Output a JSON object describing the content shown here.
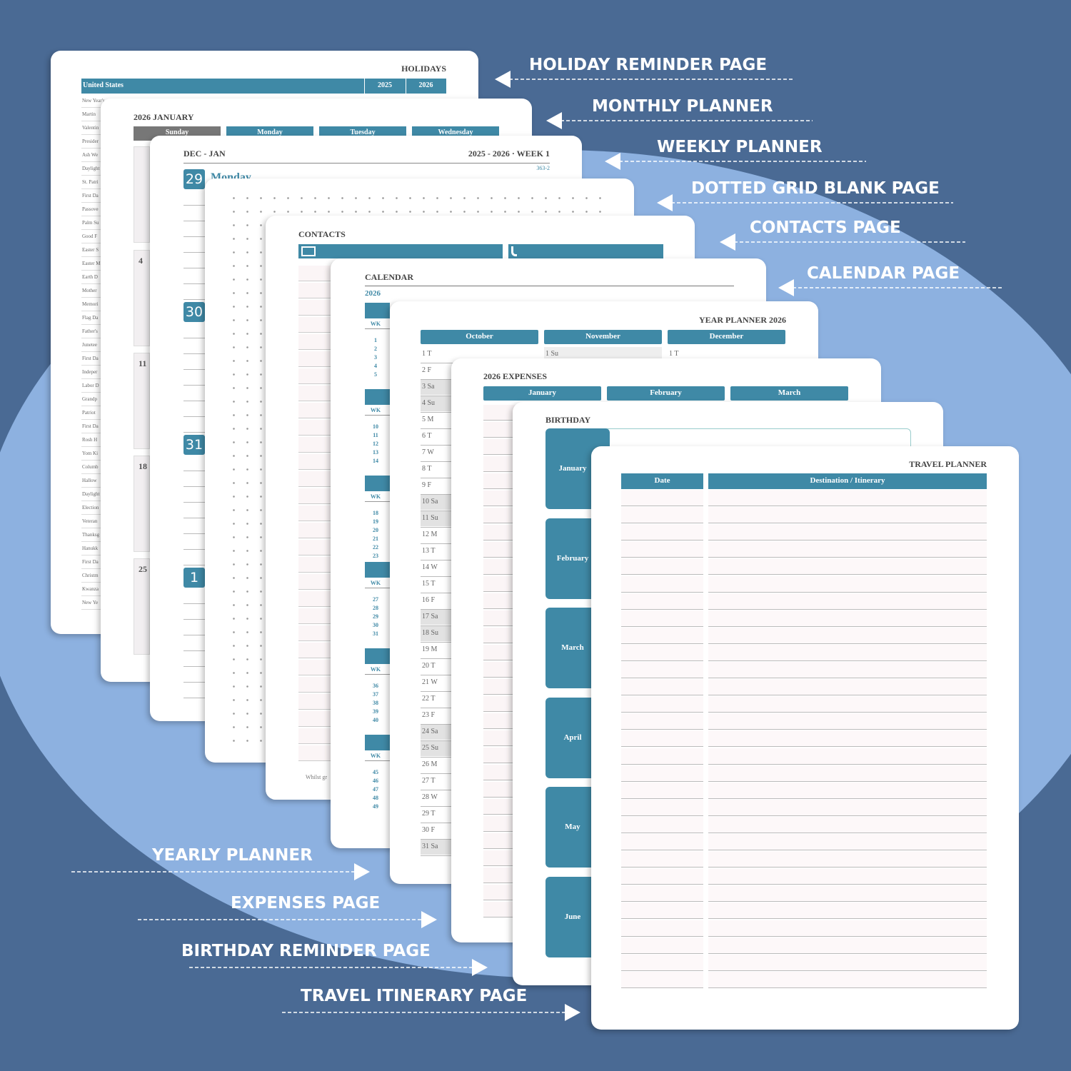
{
  "callouts": {
    "top": [
      "HOLIDAY REMINDER PAGE",
      "MONTHLY PLANNER",
      "WEEKLY PLANNER",
      "DOTTED GRID BLANK PAGE",
      "CONTACTS PAGE",
      "CALENDAR PAGE"
    ],
    "bottom": [
      "YEARLY PLANNER",
      "EXPENSES PAGE",
      "BIRTHDAY REMINDER PAGE",
      "TRAVEL ITINERARY PAGE"
    ]
  },
  "holidays": {
    "title": "HOLIDAYS",
    "country": "United States",
    "years": [
      "2025",
      "2026"
    ],
    "items": [
      "New Year's",
      "Martin",
      "Valentin",
      "Presider",
      "Ash We",
      "Daylight",
      "St. Patri",
      "First Da",
      "Passove",
      "Palm Su",
      "Good F",
      "Easter S",
      "Easter M",
      "Earth D",
      "Mother",
      "Memori",
      "Flag Da",
      "Father's",
      "Junetee",
      "First Da",
      "Indeper",
      "Labor D",
      "Grandp",
      "Patriot",
      "First Da",
      "Rosh H",
      "Yom Ki",
      "Columb",
      "Hallow",
      "Daylight",
      "Election",
      "Veteran",
      "Thanksg",
      "Hanukk",
      "First Da",
      "Christm",
      "Kwanza",
      "New Ye"
    ]
  },
  "monthly": {
    "title": "2026 JANUARY",
    "days": [
      "Sunday",
      "Monday",
      "Tuesday",
      "Wednesday"
    ],
    "dates": [
      "4",
      "11",
      "18",
      "25"
    ]
  },
  "weekly": {
    "range": "DEC - JAN",
    "week": "2025 - 2026 · WEEK 1",
    "day_of_year": "363-2",
    "day_name": "Monday",
    "dates": [
      "29",
      "30",
      "31",
      "1"
    ]
  },
  "contacts": {
    "title": "CONTACTS",
    "footer": "Whilst gr"
  },
  "calendar": {
    "title": "CALENDAR",
    "year": "2026",
    "wk": "WK",
    "weeks": [
      [
        "1",
        "2",
        "3",
        "4",
        "5"
      ],
      [
        "10",
        "11",
        "12",
        "13",
        "14"
      ],
      [
        "18",
        "19",
        "20",
        "21",
        "22",
        "23"
      ],
      [
        "27",
        "28",
        "29",
        "30",
        "31"
      ],
      [
        "36",
        "37",
        "38",
        "39",
        "40"
      ],
      [
        "45",
        "46",
        "47",
        "48",
        "49"
      ]
    ]
  },
  "year_planner": {
    "title": "YEAR PLANNER 2026",
    "months": [
      "October",
      "November",
      "December"
    ],
    "october": [
      "1 T",
      "2 F",
      "3 Sa",
      "4 Su",
      "5 M",
      "6 T",
      "7 W",
      "8 T",
      "9 F",
      "10 Sa",
      "11 Su",
      "12 M",
      "13 T",
      "14 W",
      "15 T",
      "16 F",
      "17 Sa",
      "18 Su",
      "19 M",
      "20 T",
      "21 W",
      "22 T",
      "23 F",
      "24 Sa",
      "25 Su",
      "26 M",
      "27 T",
      "28 W",
      "29 T",
      "30 F",
      "31 Sa"
    ],
    "november_first": "1 Su",
    "december_first": "1 T"
  },
  "expenses": {
    "title": "2026 EXPENSES",
    "months": [
      "January",
      "February",
      "March"
    ]
  },
  "birthday": {
    "title": "BIRTHDAY",
    "months": [
      "January",
      "February",
      "March",
      "April",
      "May",
      "June"
    ]
  },
  "travel": {
    "title": "TRAVEL PLANNER",
    "columns": [
      "Date",
      "Destination / Itinerary"
    ]
  }
}
